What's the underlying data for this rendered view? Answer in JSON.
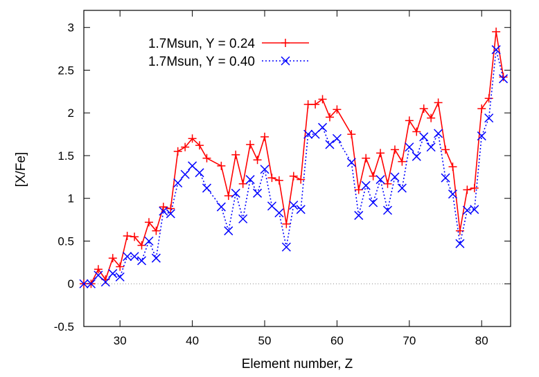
{
  "chart_data": {
    "type": "line",
    "title": "",
    "xlabel": "Element number, Z",
    "ylabel": "[X/Fe]",
    "xlim": [
      25,
      84
    ],
    "ylim": [
      -0.5,
      3.2
    ],
    "xticks": [
      30,
      40,
      50,
      60,
      70,
      80
    ],
    "xtick_labels": [
      "30",
      "40",
      "50",
      "60",
      "70",
      "80"
    ],
    "yticks": [
      -0.5,
      0,
      0.5,
      1,
      1.5,
      2,
      2.5,
      3
    ],
    "ytick_labels": [
      "-0.5",
      "0",
      "0.5",
      "1",
      "1.5",
      "2",
      "2.5",
      "3"
    ],
    "zero_line": true,
    "grid": false,
    "legend_position": "top-left",
    "series": [
      {
        "name": "1.7Msun, Y = 0.24",
        "color": "#ff0000",
        "marker": "plus",
        "line_style": "solid",
        "x": [
          25,
          26,
          27,
          28,
          29,
          30,
          31,
          32,
          33,
          34,
          35,
          36,
          37,
          38,
          39,
          40,
          41,
          42,
          44,
          45,
          46,
          47,
          48,
          49,
          50,
          51,
          52,
          53,
          54,
          55,
          56,
          57,
          58,
          59,
          60,
          62,
          63,
          64,
          65,
          66,
          67,
          68,
          69,
          70,
          71,
          72,
          73,
          74,
          75,
          76,
          77,
          78,
          79,
          80,
          81,
          82,
          83
        ],
        "values": [
          0.0,
          0.0,
          0.17,
          0.05,
          0.3,
          0.2,
          0.56,
          0.55,
          0.45,
          0.72,
          0.62,
          0.9,
          0.88,
          1.55,
          1.6,
          1.7,
          1.62,
          1.47,
          1.38,
          1.03,
          1.51,
          1.17,
          1.63,
          1.45,
          1.72,
          1.24,
          1.21,
          0.7,
          1.26,
          1.22,
          2.1,
          2.1,
          2.16,
          1.95,
          2.04,
          1.75,
          1.1,
          1.47,
          1.26,
          1.53,
          1.17,
          1.57,
          1.43,
          1.91,
          1.78,
          2.05,
          1.94,
          2.12,
          1.57,
          1.37,
          0.62,
          1.1,
          1.12,
          2.05,
          2.17,
          2.95,
          2.42
        ]
      },
      {
        "name": "1.7Msun, Y = 0.40",
        "color": "#0000ff",
        "marker": "cross",
        "line_style": "dotted",
        "x": [
          25,
          26,
          27,
          28,
          29,
          30,
          31,
          32,
          33,
          34,
          35,
          36,
          37,
          38,
          39,
          40,
          41,
          42,
          44,
          45,
          46,
          47,
          48,
          49,
          50,
          51,
          52,
          53,
          54,
          55,
          56,
          57,
          58,
          59,
          60,
          62,
          63,
          64,
          65,
          66,
          67,
          68,
          69,
          70,
          71,
          72,
          73,
          74,
          75,
          76,
          77,
          78,
          79,
          80,
          81,
          82,
          83
        ],
        "values": [
          0.0,
          0.0,
          0.1,
          0.02,
          0.12,
          0.08,
          0.32,
          0.32,
          0.27,
          0.5,
          0.3,
          0.85,
          0.82,
          1.18,
          1.28,
          1.38,
          1.3,
          1.12,
          0.9,
          0.62,
          1.06,
          0.76,
          1.22,
          1.06,
          1.34,
          0.91,
          0.83,
          0.43,
          0.92,
          0.87,
          1.75,
          1.75,
          1.83,
          1.63,
          1.7,
          1.42,
          0.8,
          1.15,
          0.95,
          1.22,
          0.86,
          1.25,
          1.12,
          1.6,
          1.49,
          1.72,
          1.6,
          1.76,
          1.24,
          1.05,
          0.47,
          0.86,
          0.87,
          1.73,
          1.94,
          2.74,
          2.4
        ]
      }
    ]
  }
}
